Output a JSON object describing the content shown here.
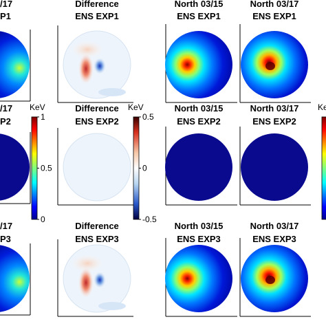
{
  "rows": [
    {
      "left_title": [
        "/17",
        "P1"
      ],
      "diff_title": [
        "Difference",
        "ENS EXP1"
      ],
      "n1_title": [
        "North 03/15",
        "ENS EXP1"
      ],
      "n2_title": [
        "North 03/17",
        "ENS EXP1"
      ]
    },
    {
      "left_title": [
        "/17",
        "P2"
      ],
      "diff_title": [
        "Difference",
        "ENS EXP2"
      ],
      "n1_title": [
        "North 03/15",
        "ENS EXP2"
      ],
      "n2_title": [
        "North 03/17",
        "ENS EXP2"
      ]
    },
    {
      "left_title": [
        "/17",
        "P3"
      ],
      "diff_title": [
        "Difference",
        "ENS EXP3"
      ],
      "n1_title": [
        "North 03/15",
        "ENS EXP3"
      ],
      "n2_title": [
        "North 03/17",
        "ENS EXP3"
      ]
    }
  ],
  "colorbar_energy": {
    "unit": "KeV",
    "ticks": [
      "1",
      "0.5",
      "0"
    ]
  },
  "colorbar_diff": {
    "unit": "KeV",
    "ticks": [
      "0.5",
      "0",
      "-0.5"
    ]
  },
  "colorbar_right": {
    "unit": "KeV"
  },
  "colors": {
    "deep_blue": "#0a0a8f",
    "light_bg": "#eef4fb",
    "positive": "#c1272d",
    "negative": "#1f3fbf"
  }
}
